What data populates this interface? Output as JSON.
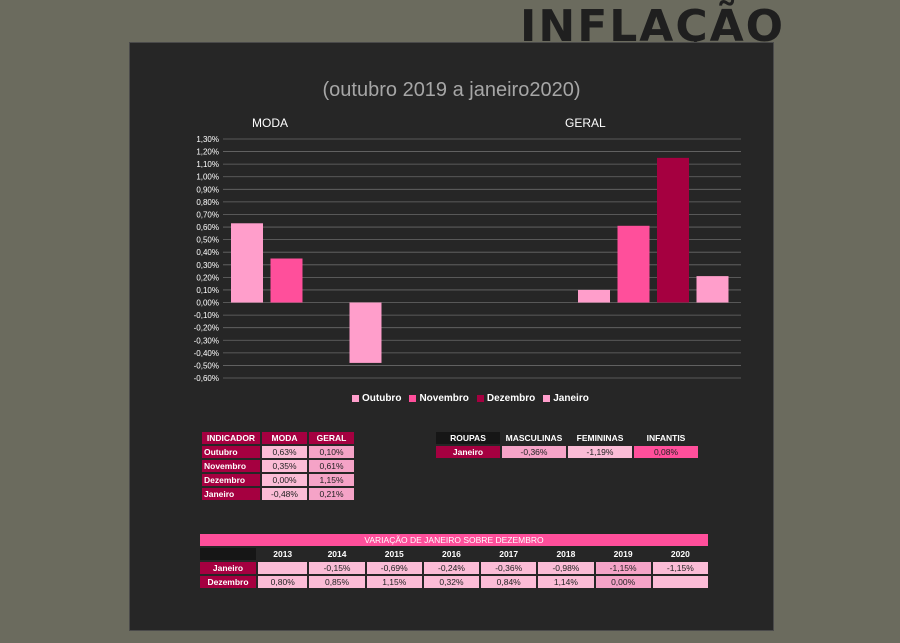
{
  "page_title": "INFLAÇÃO",
  "chart_data": {
    "type": "bar",
    "title": "(outubro 2019 a janeiro2020)",
    "groups": [
      "MODA",
      "GERAL"
    ],
    "series": [
      {
        "name": "Outubro",
        "color": "#ff9ecb",
        "values": [
          0.63,
          0.1
        ]
      },
      {
        "name": "Novembro",
        "color": "#ff4f9b",
        "values": [
          0.35,
          0.61
        ]
      },
      {
        "name": "Dezembro",
        "color": "#a50040",
        "values": [
          0.0,
          1.15
        ]
      },
      {
        "name": "Janeiro",
        "color": "#ff9ecb",
        "values": [
          -0.48,
          0.21
        ]
      }
    ],
    "ylim": [
      -0.6,
      1.3
    ],
    "yticks": [
      "1,30%",
      "1,20%",
      "1,10%",
      "1,00%",
      "0,90%",
      "0,80%",
      "0,70%",
      "0,60%",
      "0,50%",
      "0,40%",
      "0,30%",
      "0,20%",
      "0,10%",
      "0,00%",
      "-0,10%",
      "-0,20%",
      "-0,30%",
      "-0,40%",
      "-0,50%",
      "-0,60%"
    ],
    "grid": true,
    "legend_position": "bottom"
  },
  "table_indicador": {
    "headers": [
      "INDICADOR",
      "MODA",
      "GERAL"
    ],
    "rows": [
      {
        "label": "Outubro",
        "moda": "0,63%",
        "geral": "0,10%"
      },
      {
        "label": "Novembro",
        "moda": "0,35%",
        "geral": "0,61%"
      },
      {
        "label": "Dezembro",
        "moda": "0,00%",
        "geral": "1,15%"
      },
      {
        "label": "Janeiro",
        "moda": "-0,48%",
        "geral": "0,21%"
      }
    ]
  },
  "table_roupas": {
    "headers": [
      "ROUPAS",
      "MASCULINAS",
      "FEMININAS",
      "INFANTIS"
    ],
    "row": {
      "label": "Janeiro",
      "values": [
        "-0,36%",
        "-1,19%",
        "0,08%"
      ]
    }
  },
  "table_variacao": {
    "title": "VARIAÇÃO DE JANEIRO SOBRE DEZEMBRO",
    "years": [
      "2013",
      "2014",
      "2015",
      "2016",
      "2017",
      "2018",
      "2019",
      "2020"
    ],
    "rows": [
      {
        "label": "Janeiro",
        "values": [
          "",
          "-0,15%",
          "-0,69%",
          "-0,24%",
          "-0,36%",
          "-0,98%",
          "-1,15%",
          "-1,15%"
        ]
      },
      {
        "label": "Dezembro",
        "values": [
          "0,80%",
          "0,85%",
          "1,15%",
          "0,32%",
          "0,84%",
          "1,14%",
          "0,00%",
          ""
        ]
      }
    ]
  }
}
